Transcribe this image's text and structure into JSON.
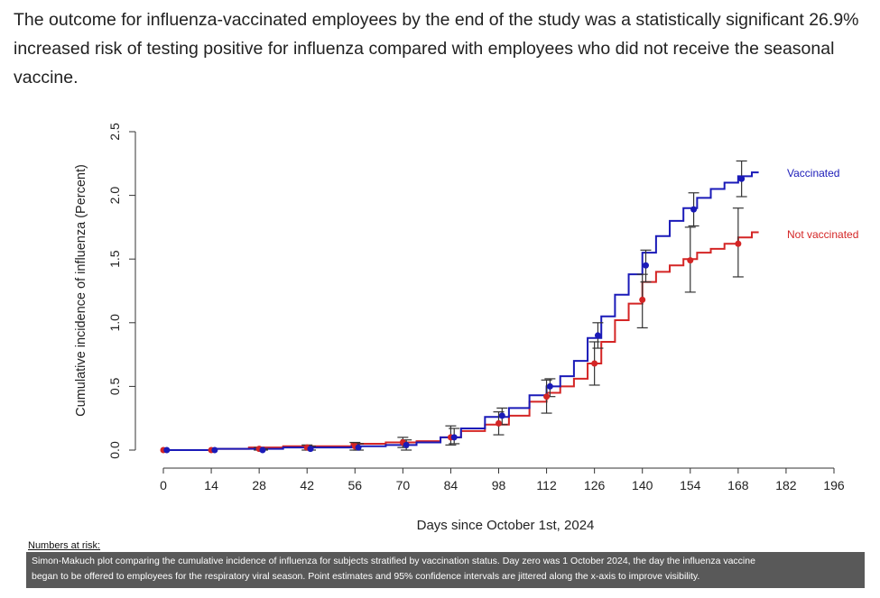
{
  "article": {
    "paragraph": "The outcome for influenza-vaccinated employees by the end of the study was a statistically significant 26.9% increased risk of testing positive for influenza compared with employees who did not receive the seasonal vaccine."
  },
  "figure": {
    "numbers_at_risk_label": "Numbers at risk:",
    "caption_line1": "Simon-Makuch plot comparing the cumulative incidence of influenza for subjects stratified by vaccination status. Day zero was 1 October 2024, the day the influenza vaccine",
    "caption_line2": "began to be offered to employees for the respiratory viral season. Point estimates and 95% confidence intervals are jittered along the x-axis to improve visibility."
  },
  "colors": {
    "vaccinated": "#1a1ab8",
    "not_vaccinated": "#d42525",
    "error_bar": "#333333",
    "axis": "#333333"
  },
  "chart_data": {
    "type": "line",
    "title": "",
    "xlabel": "Days since October 1st, 2024",
    "ylabel": "Cumulative incidence of influenza (Percent)",
    "xlim": [
      0,
      196
    ],
    "ylim": [
      0,
      2.5
    ],
    "xticks": [
      0,
      14,
      28,
      42,
      56,
      70,
      84,
      98,
      112,
      126,
      140,
      154,
      168,
      182,
      196
    ],
    "yticks": [
      "0.0",
      "0.5",
      "1.0",
      "1.5",
      "2.0",
      "2.5"
    ],
    "series": [
      {
        "name": "Vaccinated",
        "curve": [
          [
            0,
            0
          ],
          [
            10,
            0.0
          ],
          [
            20,
            0.01
          ],
          [
            30,
            0.01
          ],
          [
            40,
            0.02
          ],
          [
            50,
            0.02
          ],
          [
            60,
            0.03
          ],
          [
            70,
            0.04
          ],
          [
            78,
            0.06
          ],
          [
            84,
            0.1
          ],
          [
            90,
            0.17
          ],
          [
            98,
            0.26
          ],
          [
            104,
            0.33
          ],
          [
            110,
            0.43
          ],
          [
            114,
            0.5
          ],
          [
            118,
            0.58
          ],
          [
            122,
            0.7
          ],
          [
            126,
            0.88
          ],
          [
            130,
            1.05
          ],
          [
            134,
            1.22
          ],
          [
            138,
            1.38
          ],
          [
            142,
            1.55
          ],
          [
            146,
            1.68
          ],
          [
            150,
            1.8
          ],
          [
            154,
            1.9
          ],
          [
            158,
            1.98
          ],
          [
            162,
            2.05
          ],
          [
            166,
            2.1
          ],
          [
            170,
            2.15
          ],
          [
            174,
            2.18
          ]
        ],
        "points": [
          {
            "x": 1,
            "y": 0.0,
            "lo": 0.0,
            "hi": 0.0
          },
          {
            "x": 15,
            "y": 0.0,
            "lo": 0.0,
            "hi": 0.0
          },
          {
            "x": 29,
            "y": 0.0,
            "lo": 0.0,
            "hi": 0.01
          },
          {
            "x": 43,
            "y": 0.01,
            "lo": 0.0,
            "hi": 0.03
          },
          {
            "x": 57,
            "y": 0.02,
            "lo": 0.0,
            "hi": 0.05
          },
          {
            "x": 71,
            "y": 0.04,
            "lo": 0.0,
            "hi": 0.08
          },
          {
            "x": 85,
            "y": 0.1,
            "lo": 0.05,
            "hi": 0.17
          },
          {
            "x": 99,
            "y": 0.27,
            "lo": 0.2,
            "hi": 0.33
          },
          {
            "x": 113,
            "y": 0.5,
            "lo": 0.42,
            "hi": 0.56
          },
          {
            "x": 127,
            "y": 0.9,
            "lo": 0.8,
            "hi": 1.0
          },
          {
            "x": 141,
            "y": 1.45,
            "lo": 1.32,
            "hi": 1.57
          },
          {
            "x": 155,
            "y": 1.89,
            "lo": 1.76,
            "hi": 2.02
          },
          {
            "x": 169,
            "y": 2.13,
            "lo": 1.99,
            "hi": 2.27
          }
        ]
      },
      {
        "name": "Not vaccinated",
        "curve": [
          [
            0,
            0
          ],
          [
            10,
            0.0
          ],
          [
            20,
            0.01
          ],
          [
            30,
            0.02
          ],
          [
            40,
            0.03
          ],
          [
            50,
            0.03
          ],
          [
            60,
            0.05
          ],
          [
            70,
            0.06
          ],
          [
            78,
            0.07
          ],
          [
            84,
            0.1
          ],
          [
            90,
            0.15
          ],
          [
            98,
            0.2
          ],
          [
            104,
            0.27
          ],
          [
            110,
            0.38
          ],
          [
            114,
            0.45
          ],
          [
            118,
            0.5
          ],
          [
            122,
            0.56
          ],
          [
            126,
            0.68
          ],
          [
            130,
            0.85
          ],
          [
            134,
            1.02
          ],
          [
            138,
            1.15
          ],
          [
            142,
            1.32
          ],
          [
            146,
            1.4
          ],
          [
            150,
            1.45
          ],
          [
            154,
            1.5
          ],
          [
            158,
            1.55
          ],
          [
            162,
            1.58
          ],
          [
            166,
            1.62
          ],
          [
            170,
            1.67
          ],
          [
            174,
            1.71
          ]
        ],
        "points": [
          {
            "x": 0,
            "y": 0.0,
            "lo": 0.0,
            "hi": 0.0
          },
          {
            "x": 14,
            "y": 0.0,
            "lo": 0.0,
            "hi": 0.0
          },
          {
            "x": 28,
            "y": 0.01,
            "lo": 0.0,
            "hi": 0.02
          },
          {
            "x": 42,
            "y": 0.02,
            "lo": 0.0,
            "hi": 0.04
          },
          {
            "x": 56,
            "y": 0.03,
            "lo": 0.0,
            "hi": 0.06
          },
          {
            "x": 70,
            "y": 0.06,
            "lo": 0.02,
            "hi": 0.1
          },
          {
            "x": 84,
            "y": 0.1,
            "lo": 0.04,
            "hi": 0.19
          },
          {
            "x": 98,
            "y": 0.21,
            "lo": 0.12,
            "hi": 0.3
          },
          {
            "x": 112,
            "y": 0.42,
            "lo": 0.29,
            "hi": 0.55
          },
          {
            "x": 126,
            "y": 0.68,
            "lo": 0.51,
            "hi": 0.85
          },
          {
            "x": 140,
            "y": 1.18,
            "lo": 0.96,
            "hi": 1.38
          },
          {
            "x": 154,
            "y": 1.49,
            "lo": 1.24,
            "hi": 1.75
          },
          {
            "x": 168,
            "y": 1.62,
            "lo": 1.36,
            "hi": 1.9
          }
        ]
      }
    ],
    "legend": [
      "Vaccinated",
      "Not vaccinated"
    ]
  }
}
